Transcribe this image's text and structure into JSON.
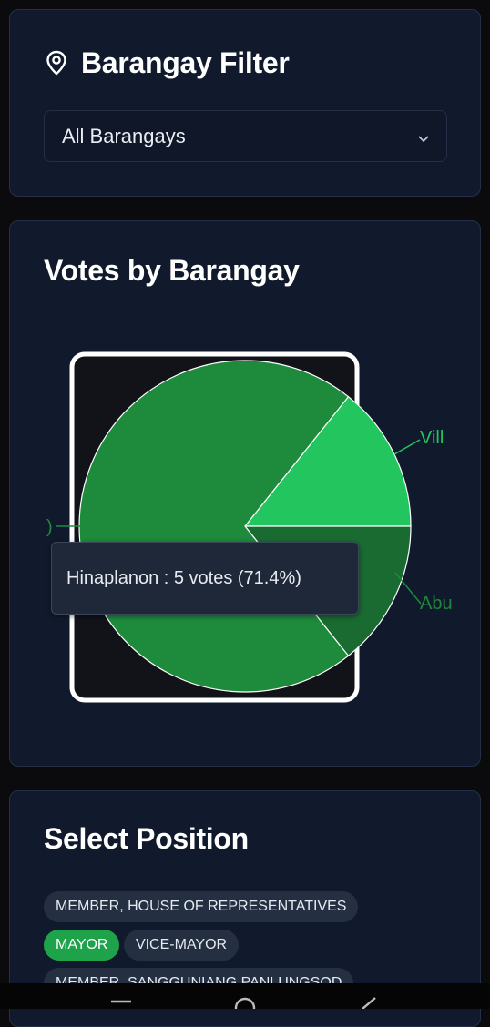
{
  "barangay_filter": {
    "title": "Barangay Filter",
    "icon": "map-pin-icon",
    "select_value": "All Barangays"
  },
  "votes_card": {
    "title": "Votes by Barangay",
    "tooltip": "Hinaplanon : 5 votes (71.4%)",
    "chart_data": {
      "type": "pie",
      "slices": [
        {
          "label": "Hinaplanon",
          "value": 5,
          "percent": 71.4,
          "color": "#1e8a3c"
        },
        {
          "label": "Vill",
          "value": 1,
          "percent": 14.3,
          "color": "#22c55e"
        },
        {
          "label": "Abu",
          "value": 1,
          "percent": 14.3,
          "color": "#1a6b32"
        }
      ],
      "visible_labels": {
        "left": ")",
        "right_top": "Vill",
        "right_bottom": "Abu"
      }
    }
  },
  "position_card": {
    "title": "Select Position",
    "chips": [
      {
        "label": "MEMBER, HOUSE OF REPRESENTATIVES",
        "active": false
      },
      {
        "label": "MAYOR",
        "active": true
      },
      {
        "label": "VICE-MAYOR",
        "active": false
      },
      {
        "label": "MEMBER, SANGGUNIANG PANLUNGSOD",
        "active": false
      }
    ]
  },
  "colors": {
    "background": "#0b0b0d",
    "card": "#111a2c",
    "accent": "#1fa34a"
  }
}
